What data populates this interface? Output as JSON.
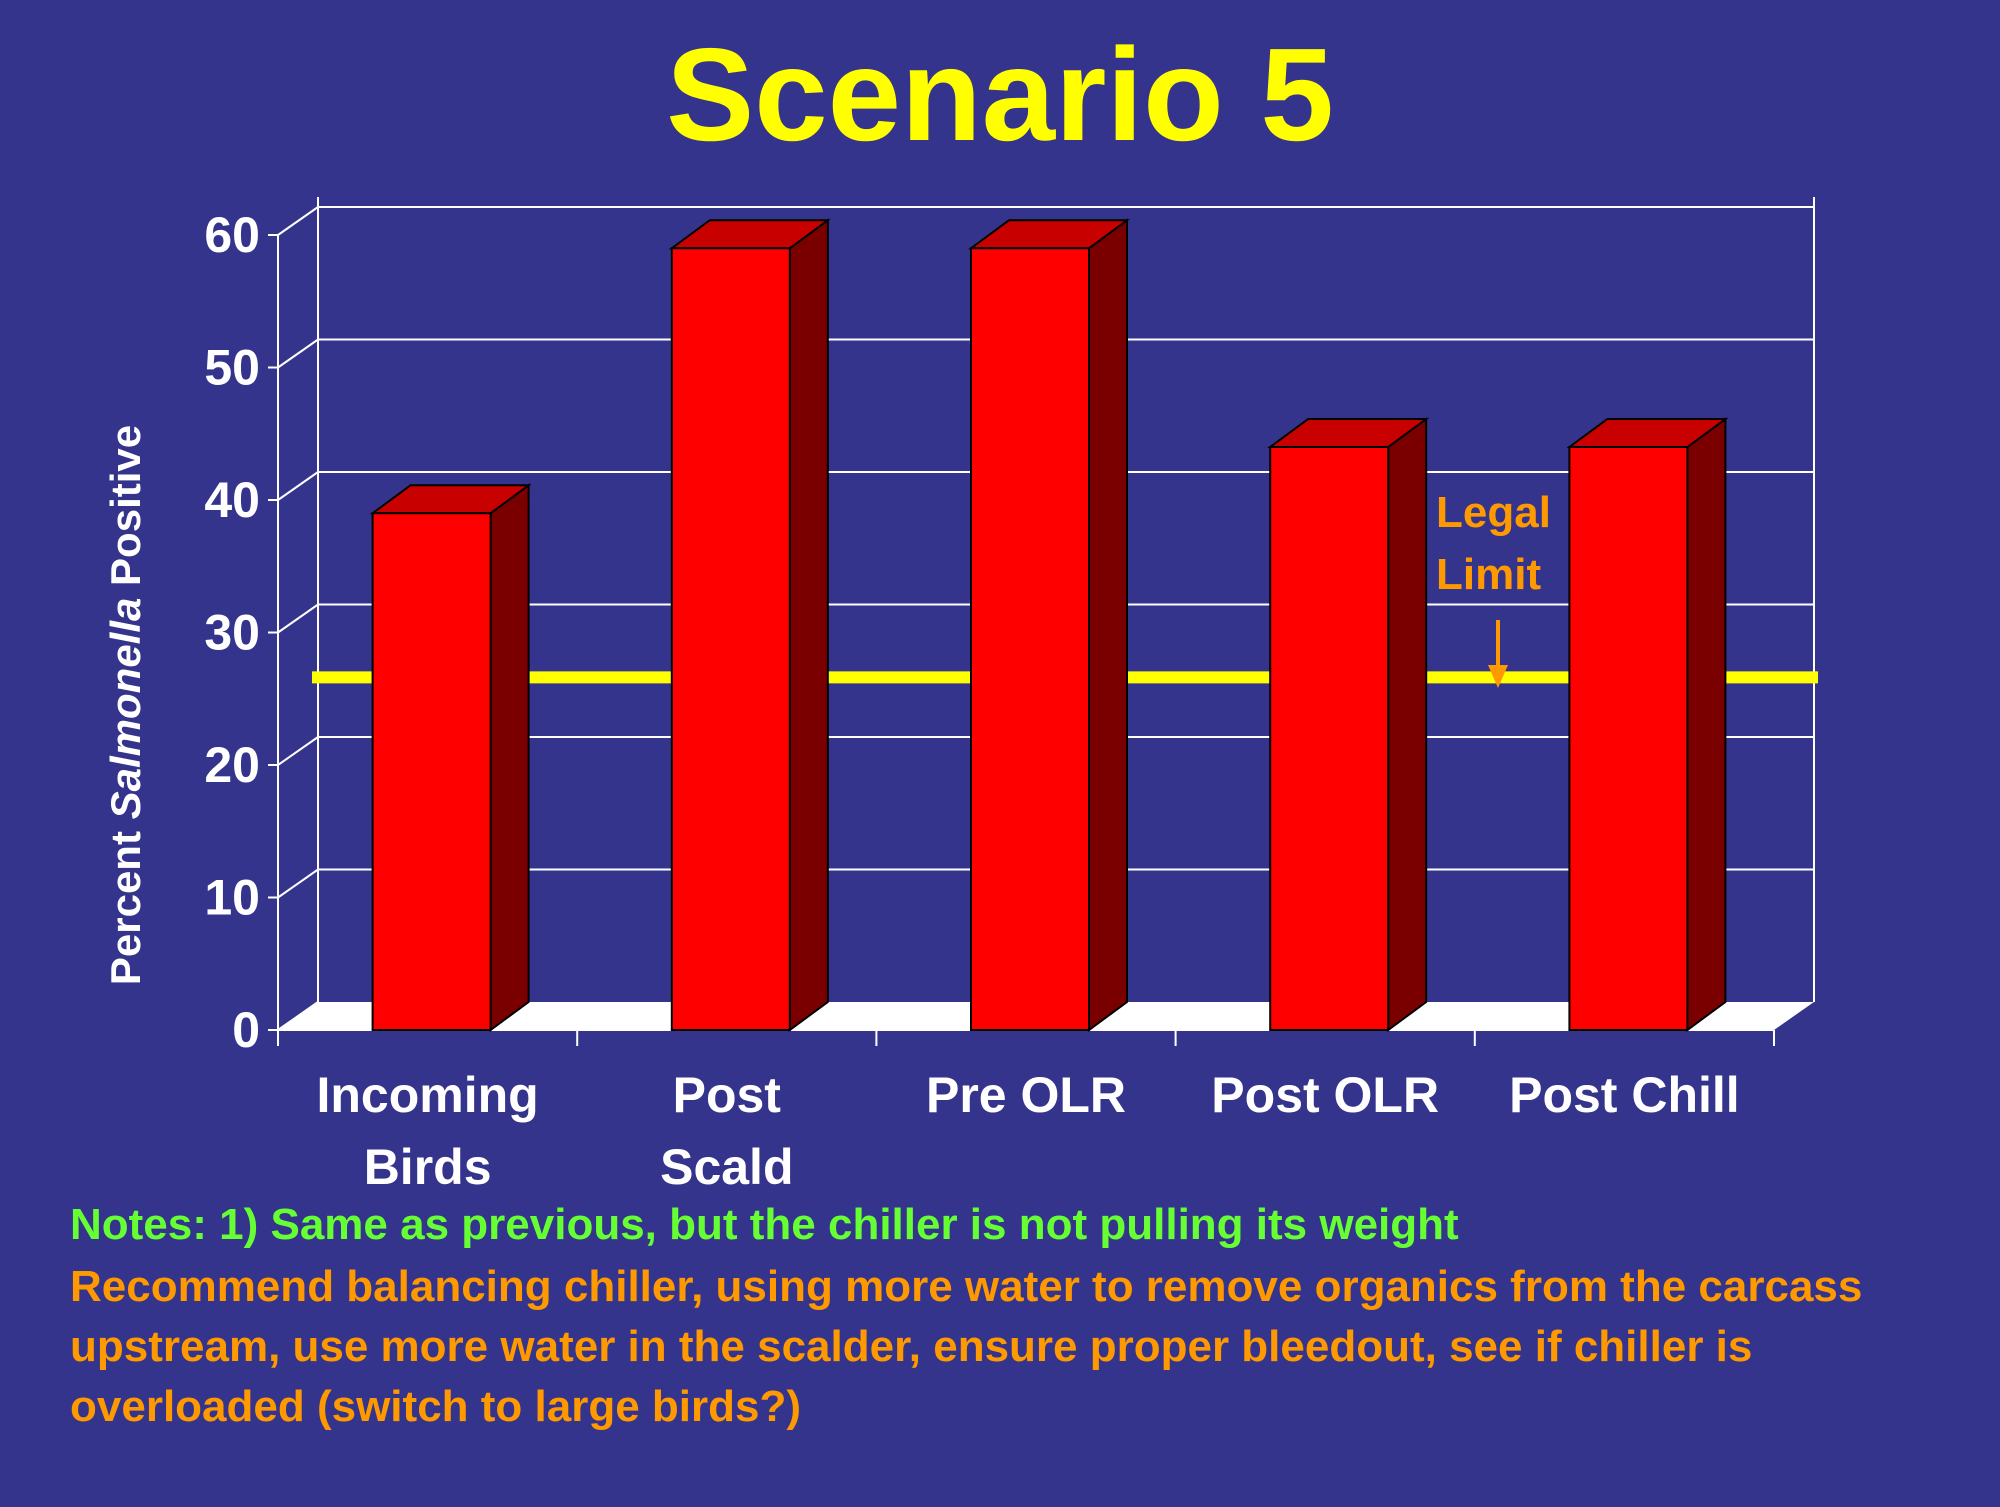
{
  "slide": {
    "title": "Scenario 5",
    "note_1": "Notes: 1) Same as previous, but the chiller is not pulling its weight",
    "note_2": "Recommend balancing chiller, using more water to remove organics from the carcass upstream, use more water in the scalder, ensure proper bleedout, see if chiller is overloaded (switch to large birds?)"
  },
  "colors": {
    "background": "#35348c",
    "title": "#ffff00",
    "bar_front": "#ff0000",
    "bar_side": "#7a0000",
    "bar_top": "#c80000",
    "limit_line": "#ffff00",
    "limit_label": "#ff9900",
    "note_green": "#66ff33",
    "note_orange": "#ff9900",
    "axis_text": "#ffffff"
  },
  "chart_data": {
    "type": "bar",
    "style": "3d-column",
    "categories": [
      [
        "Incoming",
        "Birds"
      ],
      [
        "Post",
        "Scald"
      ],
      [
        "Pre OLR"
      ],
      [
        "Post OLR"
      ],
      [
        "Post Chill"
      ]
    ],
    "values": [
      39,
      59,
      59,
      44,
      44
    ],
    "ylabel_parts": [
      "Percent ",
      "Salmonella",
      " Positive"
    ],
    "ylim": [
      0,
      60
    ],
    "yticks": [
      0,
      10,
      20,
      30,
      40,
      50,
      60
    ],
    "grid": true,
    "reference_line": {
      "value": 24.5,
      "label": [
        "Legal",
        "Limit"
      ],
      "pointer": "arrow-down"
    }
  }
}
